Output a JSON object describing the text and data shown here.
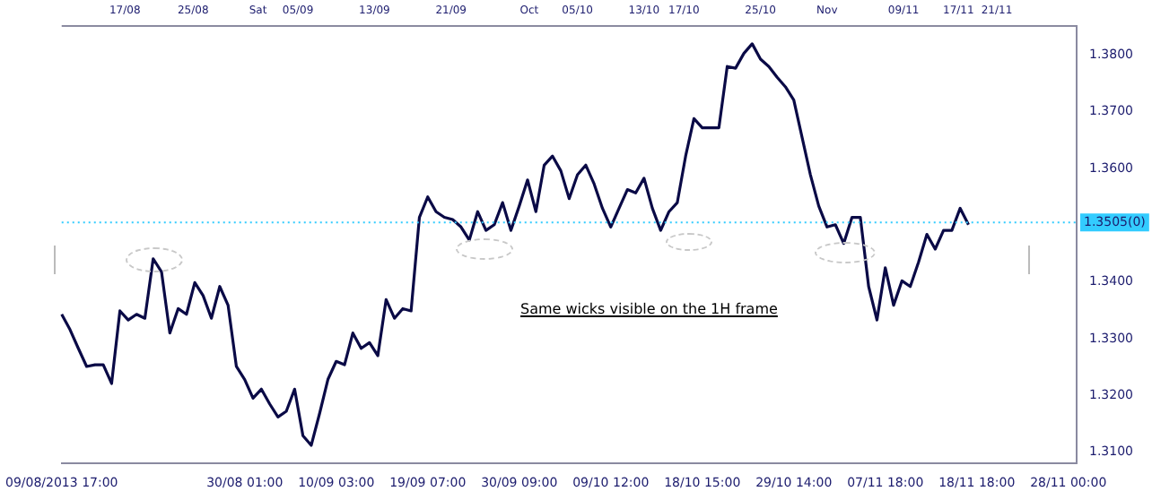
{
  "chart_data": {
    "type": "line",
    "categories": [
      "09/08/2013 17:00",
      null,
      null,
      null,
      null,
      null,
      null,
      null,
      null,
      null,
      null,
      null,
      null,
      null,
      null,
      null,
      null,
      null,
      null,
      null,
      null,
      null,
      "30/08 01:00",
      null,
      null,
      null,
      null,
      null,
      null,
      null,
      null,
      null,
      null,
      "10/09 03:00",
      null,
      null,
      null,
      null,
      null,
      null,
      null,
      null,
      null,
      null,
      "19/09 07:00",
      null,
      null,
      null,
      null,
      null,
      null,
      null,
      null,
      null,
      null,
      "30/09 09:00",
      null,
      null,
      null,
      null,
      null,
      null,
      null,
      null,
      null,
      null,
      "09/10 12:00",
      null,
      null,
      null,
      null,
      null,
      null,
      null,
      null,
      null,
      null,
      "18/10 15:00",
      null,
      null,
      null,
      null,
      null,
      null,
      null,
      null,
      null,
      null,
      "29/10 14:00",
      null,
      null,
      null,
      null,
      null,
      null,
      null,
      null,
      null,
      null,
      "07/11 18:00",
      null,
      null,
      null,
      null,
      null,
      null,
      null,
      null,
      null,
      null,
      "18/11 18:00",
      null,
      null,
      null,
      null,
      null,
      null,
      null,
      null,
      null,
      null,
      "28/11 00:00",
      null
    ],
    "series": [
      {
        "color": "#0a0a46",
        "values": [
          1.3343,
          1.3316,
          1.3283,
          1.3251,
          1.3254,
          1.3254,
          1.3221,
          1.3349,
          1.3333,
          1.3343,
          1.3336,
          1.3441,
          1.3418,
          1.331,
          1.3353,
          1.3343,
          1.3399,
          1.3376,
          1.3336,
          1.3392,
          1.3359,
          1.3251,
          1.3228,
          1.3195,
          1.3211,
          1.3185,
          1.3162,
          1.3172,
          1.3211,
          1.3129,
          1.3112,
          1.3168,
          1.3228,
          1.326,
          1.3254,
          1.331,
          1.3283,
          1.3293,
          1.327,
          1.3369,
          1.3336,
          1.3353,
          1.3349,
          1.3514,
          1.355,
          1.3524,
          1.3514,
          1.351,
          1.3497,
          1.3474,
          1.3524,
          1.3491,
          1.3501,
          1.354,
          1.3491,
          1.3534,
          1.358,
          1.3524,
          1.3606,
          1.3622,
          1.3596,
          1.3547,
          1.3589,
          1.3606,
          1.3573,
          1.353,
          1.3497,
          1.353,
          1.3563,
          1.3557,
          1.3583,
          1.353,
          1.3491,
          1.3524,
          1.354,
          1.3622,
          1.3688,
          1.3672,
          1.3672,
          1.3672,
          1.378,
          1.3777,
          1.3803,
          1.382,
          1.3793,
          1.378,
          1.3761,
          1.3744,
          1.3721,
          1.3655,
          1.3589,
          1.3534,
          1.3497,
          1.3501,
          1.3468,
          1.3514,
          1.3514,
          1.3392,
          1.3333,
          1.3425,
          1.3359,
          1.3402,
          1.3392,
          1.3435,
          1.3484,
          1.3458,
          1.3491,
          1.3491,
          1.353,
          1.3501,
          null,
          null,
          null,
          null,
          null,
          null,
          null,
          null,
          null,
          null,
          null,
          null,
          null
        ]
      }
    ],
    "ylim": [
      1.308,
      1.3853
    ],
    "yticks": [
      {
        "value": 1.31,
        "label": "1.3100"
      },
      {
        "value": 1.32,
        "label": "1.3200"
      },
      {
        "value": 1.33,
        "label": "1.3300"
      },
      {
        "value": 1.34,
        "label": "1.3400"
      },
      {
        "value": 1.36,
        "label": "1.3600"
      },
      {
        "value": 1.37,
        "label": "1.3700"
      },
      {
        "value": 1.38,
        "label": "1.3800"
      }
    ],
    "ref_lines": [
      {
        "axis": "y",
        "value": 1.3505,
        "label": "1.3505(0)",
        "color": "#33ccff",
        "line_style": "dotted"
      }
    ],
    "annotations": [
      "Same wicks visible on the 1H frame",
      "17/08",
      "25/08",
      "Sat",
      "05/09",
      "13/09",
      "21/09",
      "Oct",
      "05/10",
      "13/10",
      "17/10",
      "25/10",
      "Nov",
      "09/11",
      "17/11",
      "21/11"
    ],
    "grid": false,
    "legend": false
  }
}
